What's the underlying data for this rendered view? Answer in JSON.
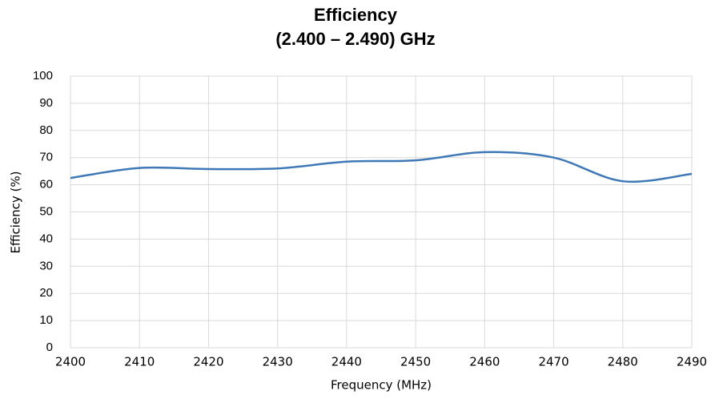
{
  "chart_data": {
    "type": "line",
    "title": [
      "Efficiency",
      "(2.400 – 2.490) GHz"
    ],
    "x_label": "Frequency (MHz)",
    "y_label": "Efficiency (%)",
    "x": [
      2400,
      2410,
      2420,
      2430,
      2440,
      2450,
      2460,
      2470,
      2480,
      2490
    ],
    "series": [
      {
        "name": "Efficiency",
        "color": "#3f78b6",
        "values": [
          62.5,
          66.2,
          65.8,
          66,
          68.5,
          69,
          72,
          70,
          61.3,
          64
        ]
      }
    ],
    "xlim": [
      2400,
      2490
    ],
    "xticks": [
      2400,
      2410,
      2420,
      2430,
      2440,
      2450,
      2460,
      2470,
      2480,
      2490
    ],
    "ylim": [
      0,
      100
    ],
    "yticks": [
      0,
      10,
      20,
      30,
      40,
      50,
      60,
      70,
      80,
      90,
      100
    ],
    "grid": true,
    "smooth": true
  }
}
